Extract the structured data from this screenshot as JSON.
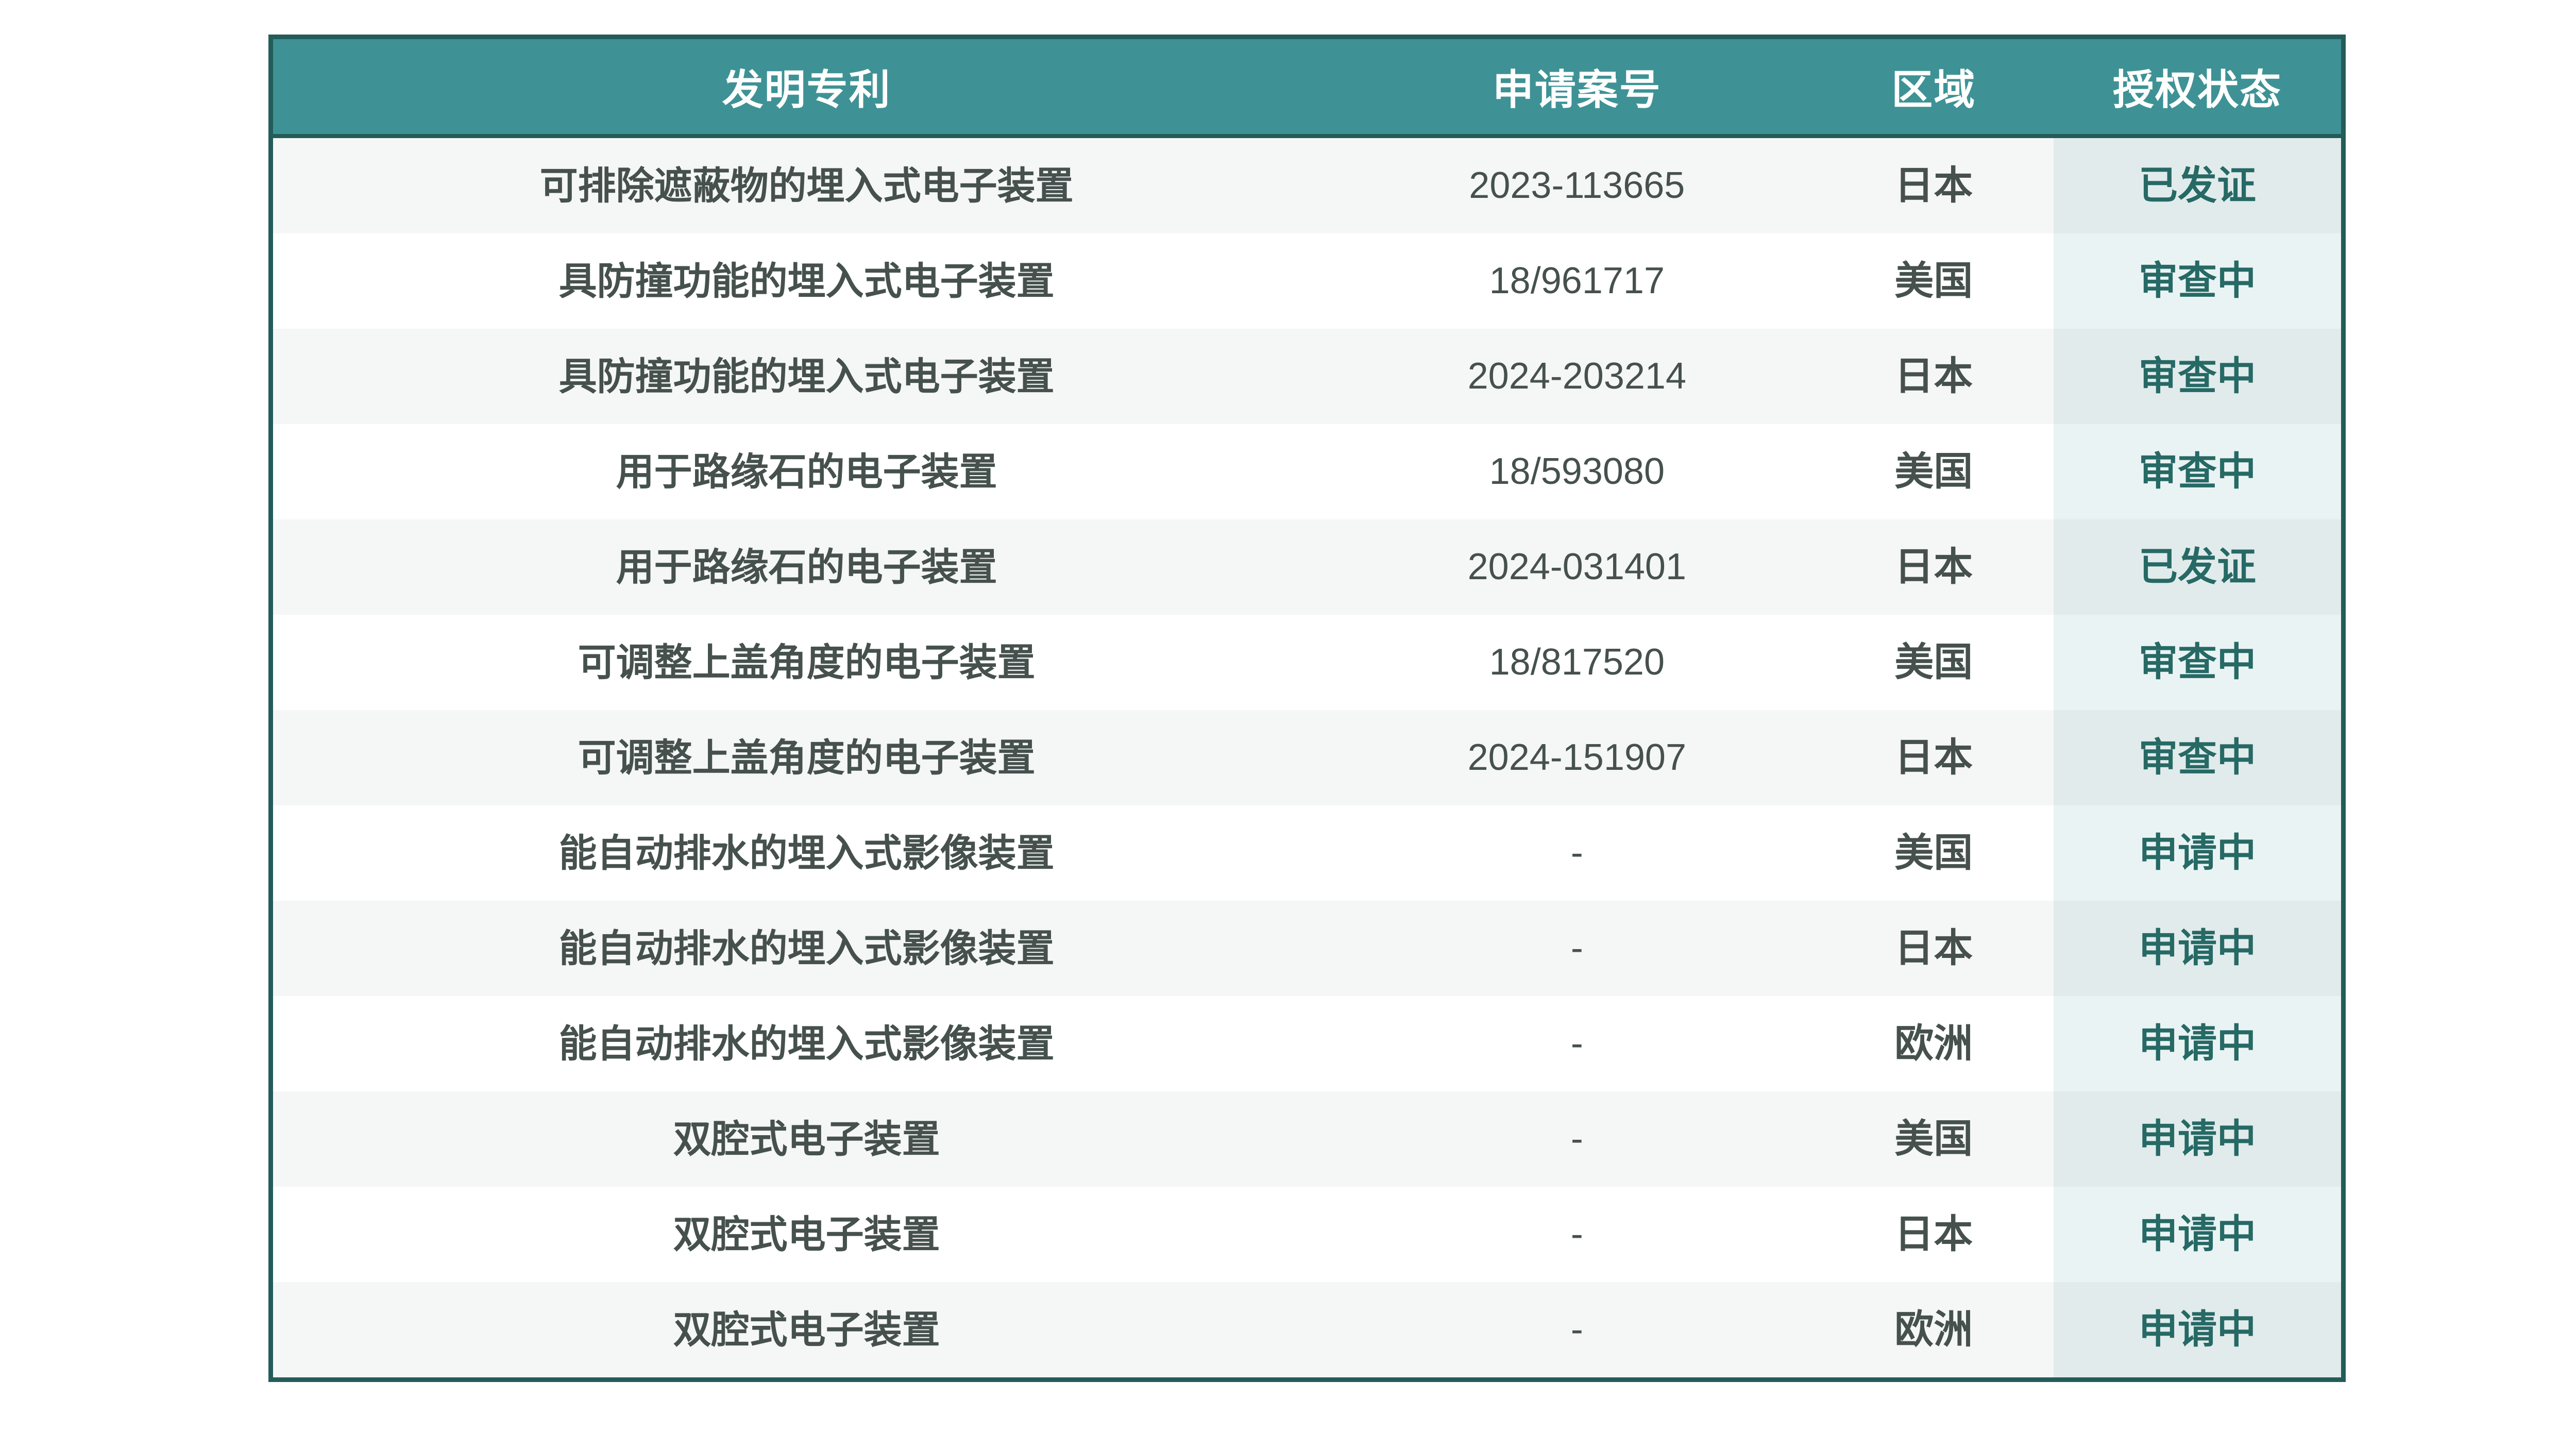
{
  "table": {
    "columns": [
      {
        "key": "name",
        "label": "发明专利"
      },
      {
        "key": "number",
        "label": "申请案号"
      },
      {
        "key": "region",
        "label": "区域"
      },
      {
        "key": "status",
        "label": "授权状态"
      }
    ],
    "rows": [
      {
        "name": "可排除遮蔽物的埋入式电子装置",
        "number": "2023-113665",
        "region": "日本",
        "status": "已发证"
      },
      {
        "name": "具防撞功能的埋入式电子装置",
        "number": "18/961717",
        "region": "美国",
        "status": "审查中"
      },
      {
        "name": "具防撞功能的埋入式电子装置",
        "number": "2024-203214",
        "region": "日本",
        "status": "审查中"
      },
      {
        "name": "用于路缘石的电子装置",
        "number": "18/593080",
        "region": "美国",
        "status": "审查中"
      },
      {
        "name": "用于路缘石的电子装置",
        "number": "2024-031401",
        "region": "日本",
        "status": "已发证"
      },
      {
        "name": "可调整上盖角度的电子装置",
        "number": "18/817520",
        "region": "美国",
        "status": "审查中"
      },
      {
        "name": "可调整上盖角度的电子装置",
        "number": "2024-151907",
        "region": "日本",
        "status": "审查中"
      },
      {
        "name": "能自动排水的埋入式影像装置",
        "number": "-",
        "region": "美国",
        "status": "申请中"
      },
      {
        "name": "能自动排水的埋入式影像装置",
        "number": "-",
        "region": "日本",
        "status": "申请中"
      },
      {
        "name": "能自动排水的埋入式影像装置",
        "number": "-",
        "region": "欧洲",
        "status": "申请中"
      },
      {
        "name": "双腔式电子装置",
        "number": "-",
        "region": "美国",
        "status": "申请中"
      },
      {
        "name": "双腔式电子装置",
        "number": "-",
        "region": "日本",
        "status": "申请中"
      },
      {
        "name": "双腔式电子装置",
        "number": "-",
        "region": "欧洲",
        "status": "申请中"
      }
    ],
    "colors": {
      "header_bg": "#3e9295",
      "table_border": "#235c59",
      "body_text": "#46514e",
      "status_text": "#266965",
      "stripe_odd_bg": "#f5f6f6",
      "stripe_even_bg": "#ffffff",
      "status_column_tint": "#e9f3f2"
    }
  }
}
